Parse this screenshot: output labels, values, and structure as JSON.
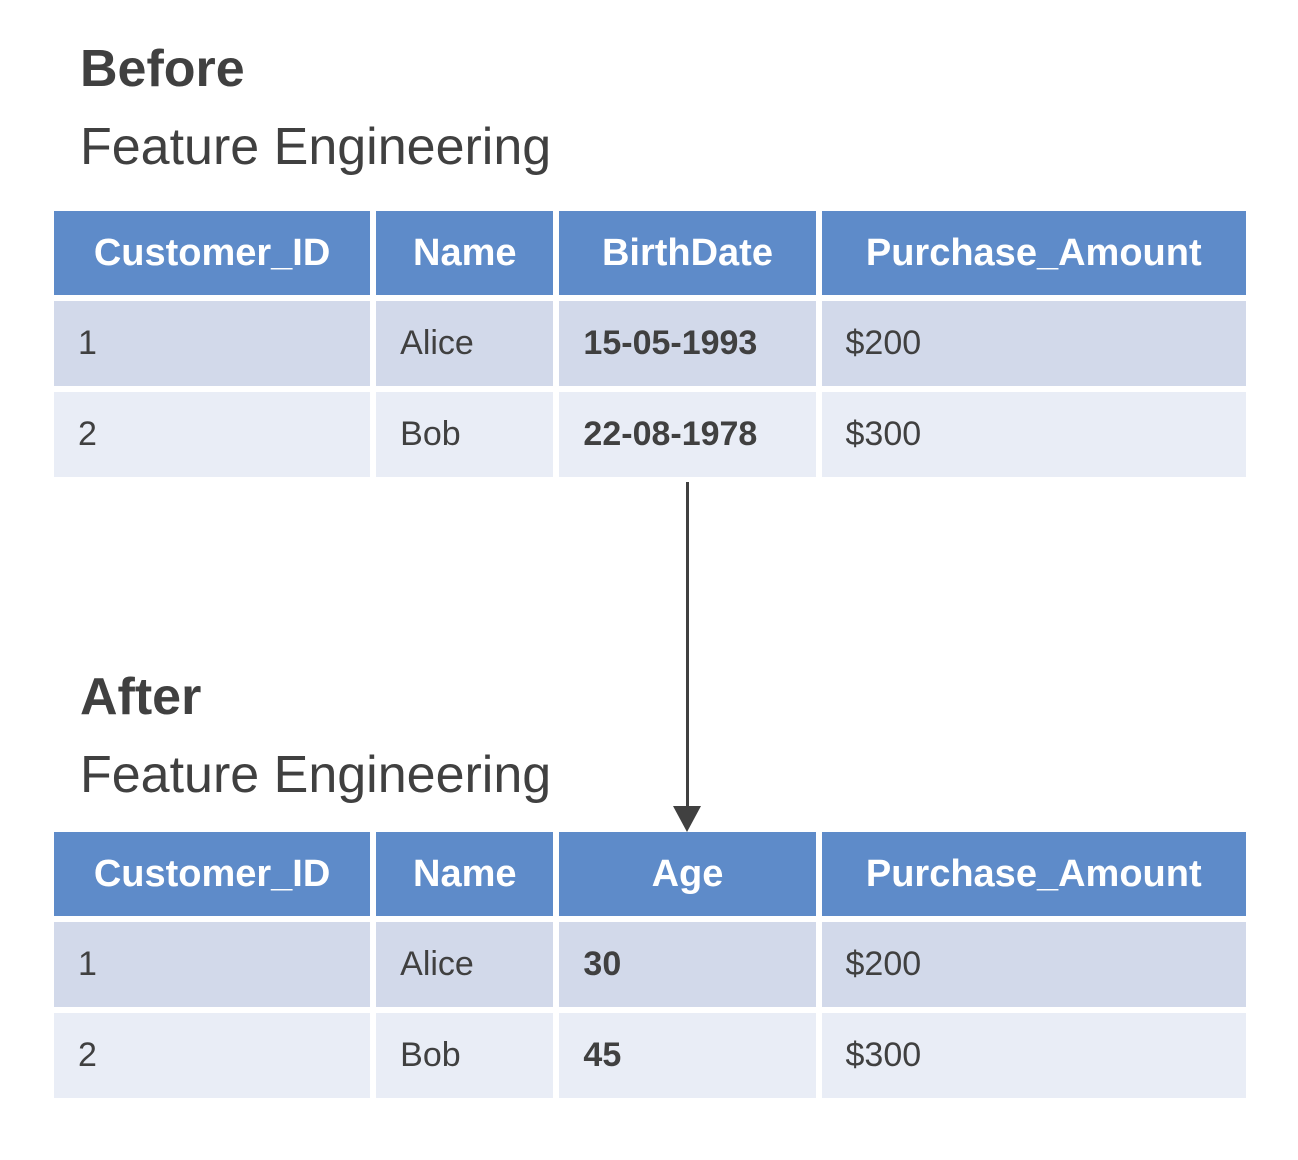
{
  "colors": {
    "header_bg": "#5E8BC9",
    "row_odd_bg": "#D2D9EA",
    "row_even_bg": "#E9EDF6",
    "header_text": "#FFFFFF",
    "body_text": "#404040",
    "title_text": "#404040",
    "arrow": "#404040"
  },
  "before": {
    "title": "Before",
    "subtitle": "Feature Engineering",
    "table": {
      "headers": [
        "Customer_ID",
        "Name",
        "BirthDate",
        "Purchase_Amount"
      ],
      "rows": [
        [
          "1",
          "Alice",
          "15-05-1993",
          "$200"
        ],
        [
          "2",
          "Bob",
          "22-08-1978",
          "$300"
        ]
      ]
    }
  },
  "after": {
    "title": "After",
    "subtitle": "Feature Engineering",
    "table": {
      "headers": [
        "Customer_ID",
        "Name",
        "Age",
        "Purchase_Amount"
      ],
      "rows": [
        [
          "1",
          "Alice",
          "30",
          "$200"
        ],
        [
          "2",
          "Bob",
          "45",
          "$300"
        ]
      ]
    }
  }
}
